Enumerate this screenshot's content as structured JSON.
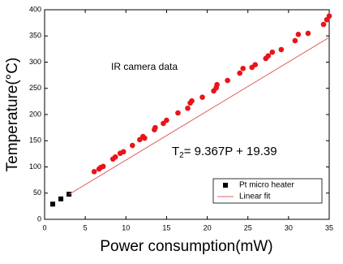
{
  "chart_data": {
    "type": "scatter",
    "x_label": "Power consumption(mW)",
    "y_label": "Temperature(°C)",
    "annotation": "IR camera data",
    "equation": {
      "base": "T",
      "subscript": "2",
      "rest": "= 9.367P + 19.39"
    },
    "xlim": [
      0,
      35
    ],
    "ylim": [
      0,
      400
    ],
    "xticks": [
      0,
      5,
      10,
      15,
      20,
      25,
      30,
      35
    ],
    "yticks": [
      0,
      50,
      100,
      150,
      200,
      250,
      300,
      350,
      400
    ],
    "legend": "lower right",
    "series": [
      {
        "name": "Pt micro heater",
        "color": "#000000",
        "marker": "square",
        "x": [
          1,
          2,
          3
        ],
        "values": [
          29,
          39,
          48
        ]
      },
      {
        "name": "Linear fit",
        "color": "#e06666",
        "marker": "line",
        "x": [
          3,
          35
        ],
        "values": [
          47.5,
          347.2
        ]
      },
      {
        "color": "#e8141a",
        "marker": "circle",
        "x": [
          6.1,
          6.7,
          6.9,
          7.2,
          8.4,
          8.7,
          9.3,
          9.7,
          10.8,
          11.7,
          12.1,
          12.3,
          13.5,
          13.6,
          14.6,
          15.0,
          16.4,
          17.6,
          17.9,
          18.1,
          19.4,
          20.8,
          21.1,
          21.2,
          22.5,
          24.0,
          24.4,
          25.5,
          25.9,
          27.2,
          27.5,
          28.0,
          29.1,
          30.8,
          31.2,
          32.4,
          34.3,
          34.7,
          35.0
        ],
        "values": [
          91,
          96,
          99,
          101,
          115,
          119,
          126,
          129,
          141,
          152,
          158,
          155,
          171,
          175,
          183,
          189,
          203,
          212,
          222,
          226,
          233,
          245,
          251,
          257,
          265,
          279,
          288,
          290,
          295,
          307,
          312,
          319,
          324,
          341,
          353,
          355,
          372,
          381,
          388
        ]
      }
    ]
  }
}
